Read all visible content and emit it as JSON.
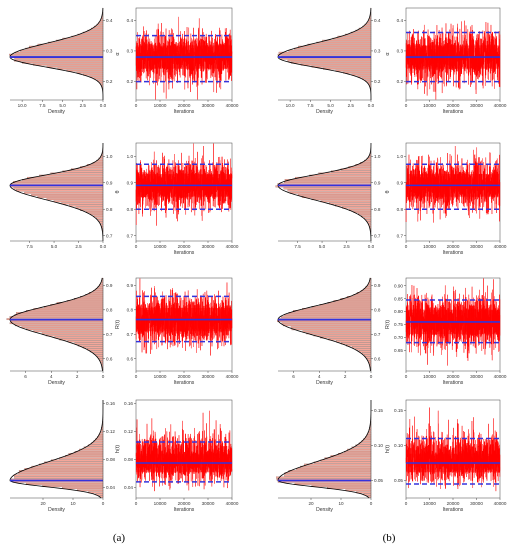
{
  "captions": [
    "(a)",
    "(b)"
  ],
  "colors": {
    "trace": "#ff0000",
    "histogram_fill": "#f4a79a",
    "histogram_stripe": "#8b5a52",
    "hdi_line": "#3333dd",
    "density_curve": "#000000"
  },
  "chart_data": [
    {
      "type": "histogram",
      "panel": "a",
      "row": 1,
      "xlabel": "Density",
      "x_reversed": true,
      "xticks": [
        10.0,
        7.5,
        5.0,
        2.5,
        0.0
      ],
      "xtick_labels": [
        "10.0",
        "7.5",
        "5.0",
        "2.5",
        "0.0"
      ],
      "xlim": [
        11.5,
        0
      ],
      "yticks": [
        0.2,
        0.3,
        0.4
      ],
      "ytick_labels": [
        "0.2",
        "0.3",
        "0.4"
      ],
      "ylim": [
        0.14,
        0.44
      ],
      "dist": {
        "mode": 0.28,
        "sd_low": 0.033,
        "sd_high": 0.045,
        "peak": 11.5
      },
      "lines": [
        0.28
      ]
    },
    {
      "type": "line",
      "panel": "a",
      "row": 1,
      "xlabel": "Iterations",
      "ylabel": "α",
      "xticks": [
        0,
        10000,
        20000,
        30000,
        40000
      ],
      "xtick_labels": [
        "0",
        "10000",
        "20000",
        "30000",
        "40000"
      ],
      "xlim": [
        0,
        40000
      ],
      "yticks": [
        0.2,
        0.3,
        0.4
      ],
      "ytick_labels": [
        "0.2",
        "0.3",
        "0.4"
      ],
      "ylim": [
        0.14,
        0.44
      ],
      "trace": {
        "center": 0.28,
        "spread": 0.04
      },
      "lines": {
        "mean": 0.28,
        "lower": 0.2,
        "upper": 0.35
      }
    },
    {
      "type": "histogram",
      "panel": "b",
      "row": 1,
      "xlabel": "Density",
      "x_reversed": true,
      "xticks": [
        10.0,
        7.5,
        5.0,
        2.5,
        0.0
      ],
      "xtick_labels": [
        "10.0",
        "7.5",
        "5.0",
        "2.5",
        "0.0"
      ],
      "xlim": [
        11.5,
        0
      ],
      "yticks": [
        0.2,
        0.3,
        0.4
      ],
      "ytick_labels": [
        "0.2",
        "0.3",
        "0.4"
      ],
      "ylim": [
        0.14,
        0.44
      ],
      "dist": {
        "mode": 0.28,
        "sd_low": 0.033,
        "sd_high": 0.045,
        "peak": 11.5
      },
      "lines": [
        0.28
      ]
    },
    {
      "type": "line",
      "panel": "b",
      "row": 1,
      "xlabel": "Iterations",
      "ylabel": "α",
      "xticks": [
        0,
        10000,
        20000,
        30000,
        40000
      ],
      "xtick_labels": [
        "0",
        "10000",
        "20000",
        "30000",
        "40000"
      ],
      "xlim": [
        0,
        40000
      ],
      "yticks": [
        0.2,
        0.3,
        0.4
      ],
      "ytick_labels": [
        "0.2",
        "0.3",
        "0.4"
      ],
      "ylim": [
        0.14,
        0.44
      ],
      "trace": {
        "center": 0.28,
        "spread": 0.04
      },
      "lines": {
        "mean": 0.28,
        "lower": 0.2,
        "upper": 0.36
      }
    },
    {
      "type": "histogram",
      "panel": "a",
      "row": 2,
      "xlabel": "",
      "x_reversed": true,
      "xticks": [
        7.5,
        5.0,
        2.5,
        0.0
      ],
      "xtick_labels": [
        "7.5",
        "5.0",
        "2.5",
        "0.0"
      ],
      "xlim": [
        9.5,
        0
      ],
      "yticks": [
        0.7,
        0.8,
        0.9,
        1.0
      ],
      "ytick_labels": [
        "0.7",
        "0.8",
        "0.9",
        "1.0"
      ],
      "ylim": [
        0.68,
        1.05
      ],
      "dist": {
        "mode": 0.89,
        "sd_low": 0.055,
        "sd_high": 0.04,
        "peak": 9.5
      },
      "lines": [
        0.89
      ]
    },
    {
      "type": "line",
      "panel": "a",
      "row": 2,
      "xlabel": "Iterations",
      "ylabel": "θ",
      "xticks": [
        0,
        10000,
        20000,
        30000,
        40000
      ],
      "xtick_labels": [
        "0",
        "10000",
        "20000",
        "30000",
        "40000"
      ],
      "xlim": [
        0,
        40000
      ],
      "yticks": [
        0.7,
        0.8,
        0.9,
        1.0
      ],
      "ytick_labels": [
        "0.7",
        "0.8",
        "0.9",
        "1.0"
      ],
      "ylim": [
        0.68,
        1.05
      ],
      "trace": {
        "center": 0.89,
        "spread": 0.045
      },
      "lines": {
        "mean": 0.89,
        "lower": 0.8,
        "upper": 0.97
      }
    },
    {
      "type": "histogram",
      "panel": "b",
      "row": 2,
      "xlabel": "",
      "x_reversed": true,
      "xticks": [
        7.5,
        5.0,
        2.5,
        0.0
      ],
      "xtick_labels": [
        "7.5",
        "5.0",
        "2.5",
        "0.0"
      ],
      "xlim": [
        9.5,
        0
      ],
      "yticks": [
        0.7,
        0.8,
        0.9,
        1.0
      ],
      "ytick_labels": [
        "0.7",
        "0.8",
        "0.9",
        "1.0"
      ],
      "ylim": [
        0.68,
        1.05
      ],
      "dist": {
        "mode": 0.89,
        "sd_low": 0.055,
        "sd_high": 0.04,
        "peak": 9.5
      },
      "lines": [
        0.89
      ]
    },
    {
      "type": "line",
      "panel": "b",
      "row": 2,
      "xlabel": "Iterations",
      "ylabel": "θ",
      "xticks": [
        0,
        10000,
        20000,
        30000,
        40000
      ],
      "xtick_labels": [
        "0",
        "10000",
        "20000",
        "30000",
        "40000"
      ],
      "xlim": [
        0,
        40000
      ],
      "yticks": [
        0.7,
        0.8,
        0.9,
        1.0
      ],
      "ytick_labels": [
        "0.7",
        "0.8",
        "0.9",
        "1.0"
      ],
      "ylim": [
        0.68,
        1.05
      ],
      "trace": {
        "center": 0.89,
        "spread": 0.045
      },
      "lines": {
        "mean": 0.89,
        "lower": 0.8,
        "upper": 0.97
      }
    },
    {
      "type": "histogram",
      "panel": "a",
      "row": 3,
      "xlabel": "Density",
      "x_reversed": true,
      "xticks": [
        6,
        4,
        2,
        0
      ],
      "xtick_labels": [
        "6",
        "4",
        "2",
        "0"
      ],
      "xlim": [
        7.2,
        0
      ],
      "yticks": [
        0.6,
        0.7,
        0.8,
        0.9
      ],
      "ytick_labels": [
        "0.6",
        "0.7",
        "0.8",
        "0.9"
      ],
      "ylim": [
        0.55,
        0.93
      ],
      "dist": {
        "mode": 0.76,
        "sd_low": 0.065,
        "sd_high": 0.055,
        "peak": 7.2
      },
      "lines": [
        0.76
      ]
    },
    {
      "type": "line",
      "panel": "a",
      "row": 3,
      "xlabel": "Iterations",
      "ylabel": "R(t)",
      "xticks": [
        0,
        10000,
        20000,
        30000,
        40000
      ],
      "xtick_labels": [
        "0",
        "10000",
        "20000",
        "30000",
        "40000"
      ],
      "xlim": [
        0,
        40000
      ],
      "yticks": [
        0.6,
        0.7,
        0.8,
        0.9
      ],
      "ytick_labels": [
        "0.6",
        "0.7",
        "0.8",
        "0.9"
      ],
      "ylim": [
        0.55,
        0.93
      ],
      "trace": {
        "center": 0.76,
        "spread": 0.05
      },
      "lines": {
        "mean": 0.76,
        "lower": 0.67,
        "upper": 0.855
      }
    },
    {
      "type": "histogram",
      "panel": "b",
      "row": 3,
      "xlabel": "Density",
      "x_reversed": true,
      "xticks": [
        6,
        4,
        2,
        0
      ],
      "xtick_labels": [
        "6",
        "4",
        "2",
        "0"
      ],
      "xlim": [
        7.2,
        0
      ],
      "yticks": [
        0.6,
        0.7,
        0.8,
        0.9
      ],
      "ytick_labels": [
        "0.6",
        "0.7",
        "0.8",
        "0.9"
      ],
      "ylim": [
        0.55,
        0.93
      ],
      "dist": {
        "mode": 0.76,
        "sd_low": 0.065,
        "sd_high": 0.055,
        "peak": 7.2
      },
      "lines": [
        0.76
      ]
    },
    {
      "type": "line",
      "panel": "b",
      "row": 3,
      "xlabel": "Iterations",
      "ylabel": "R(t)",
      "xticks": [
        0,
        10000,
        20000,
        30000,
        40000
      ],
      "xtick_labels": [
        "0",
        "10000",
        "20000",
        "30000",
        "40000"
      ],
      "xlim": [
        0,
        40000
      ],
      "yticks": [
        0.65,
        0.7,
        0.75,
        0.8,
        0.85,
        0.9
      ],
      "ytick_labels": [
        "0.65",
        "0.70",
        "0.75",
        "0.80",
        "0.85",
        "0.90"
      ],
      "ylim": [
        0.57,
        0.93
      ],
      "trace": {
        "center": 0.76,
        "spread": 0.05
      },
      "lines": {
        "mean": 0.76,
        "lower": 0.68,
        "upper": 0.845
      }
    },
    {
      "type": "histogram",
      "panel": "a",
      "row": 4,
      "xlabel": "Density",
      "x_reversed": true,
      "xticks": [
        20,
        10,
        0
      ],
      "xtick_labels": [
        "20",
        "10",
        "0"
      ],
      "xlim": [
        31,
        0
      ],
      "yticks": [
        0.04,
        0.08,
        0.12,
        0.16
      ],
      "ytick_labels": [
        "0.04",
        "0.08",
        "0.12",
        "0.16"
      ],
      "ylim": [
        0.025,
        0.165
      ],
      "dist": {
        "mode": 0.05,
        "sd_low": 0.009,
        "sd_high": 0.026,
        "peak": 31
      },
      "lines": [
        0.05
      ]
    },
    {
      "type": "line",
      "panel": "a",
      "row": 4,
      "xlabel": "Iterations",
      "ylabel": "h(t)",
      "xticks": [
        0,
        10000,
        20000,
        30000,
        40000
      ],
      "xtick_labels": [
        "0",
        "10000",
        "20000",
        "30000",
        "40000"
      ],
      "xlim": [
        0,
        40000
      ],
      "yticks": [
        0.04,
        0.08,
        0.12,
        0.16
      ],
      "ytick_labels": [
        "0.04",
        "0.08",
        "0.12",
        "0.16"
      ],
      "ylim": [
        0.025,
        0.165
      ],
      "trace": {
        "center": 0.075,
        "spread": 0.014
      },
      "lines": {
        "mean": 0.075,
        "lower": 0.048,
        "upper": 0.105
      }
    },
    {
      "type": "histogram",
      "panel": "b",
      "row": 4,
      "xlabel": "Density",
      "x_reversed": true,
      "xticks": [
        20,
        10,
        0
      ],
      "xtick_labels": [
        "20",
        "10",
        "0"
      ],
      "xlim": [
        31,
        0
      ],
      "yticks": [
        0.05,
        0.1,
        0.15
      ],
      "ytick_labels": [
        "0.05",
        "0.10",
        "0.15"
      ],
      "ylim": [
        0.025,
        0.165
      ],
      "dist": {
        "mode": 0.05,
        "sd_low": 0.009,
        "sd_high": 0.026,
        "peak": 31
      },
      "lines": [
        0.05
      ]
    },
    {
      "type": "line",
      "panel": "b",
      "row": 4,
      "xlabel": "Iterations",
      "ylabel": "h(t)",
      "xticks": [
        0,
        10000,
        20000,
        30000,
        40000
      ],
      "xtick_labels": [
        "0",
        "10000",
        "20000",
        "30000",
        "40000"
      ],
      "xlim": [
        0,
        40000
      ],
      "yticks": [
        0.05,
        0.1,
        0.15
      ],
      "ytick_labels": [
        "0.05",
        "0.10",
        "0.15"
      ],
      "ylim": [
        0.025,
        0.165
      ],
      "trace": {
        "center": 0.075,
        "spread": 0.014
      },
      "lines": {
        "mean": 0.075,
        "lower": 0.045,
        "upper": 0.11
      }
    }
  ]
}
